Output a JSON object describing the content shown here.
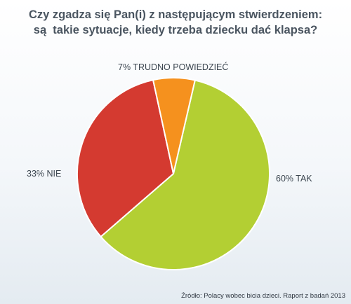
{
  "chart_data": {
    "type": "pie",
    "title": [
      "Czy zgadza się Pan(i) z następującym stwierdzeniem:",
      "są  takie sytuacje, kiedy trzeba dziecku dać klapsa?"
    ],
    "slices": [
      {
        "label": "60% TAK",
        "value": 60,
        "color": "#b3cf33"
      },
      {
        "label": "33% NIE",
        "value": 33,
        "color": "#d43a30"
      },
      {
        "label": "7% TRUDNO POWIEDZIEĆ",
        "value": 7,
        "color": "#f5911e"
      }
    ],
    "legend": "none"
  },
  "source": "Źródło: Polacy wobec bicia dzieci.  Raport z badań 2013"
}
